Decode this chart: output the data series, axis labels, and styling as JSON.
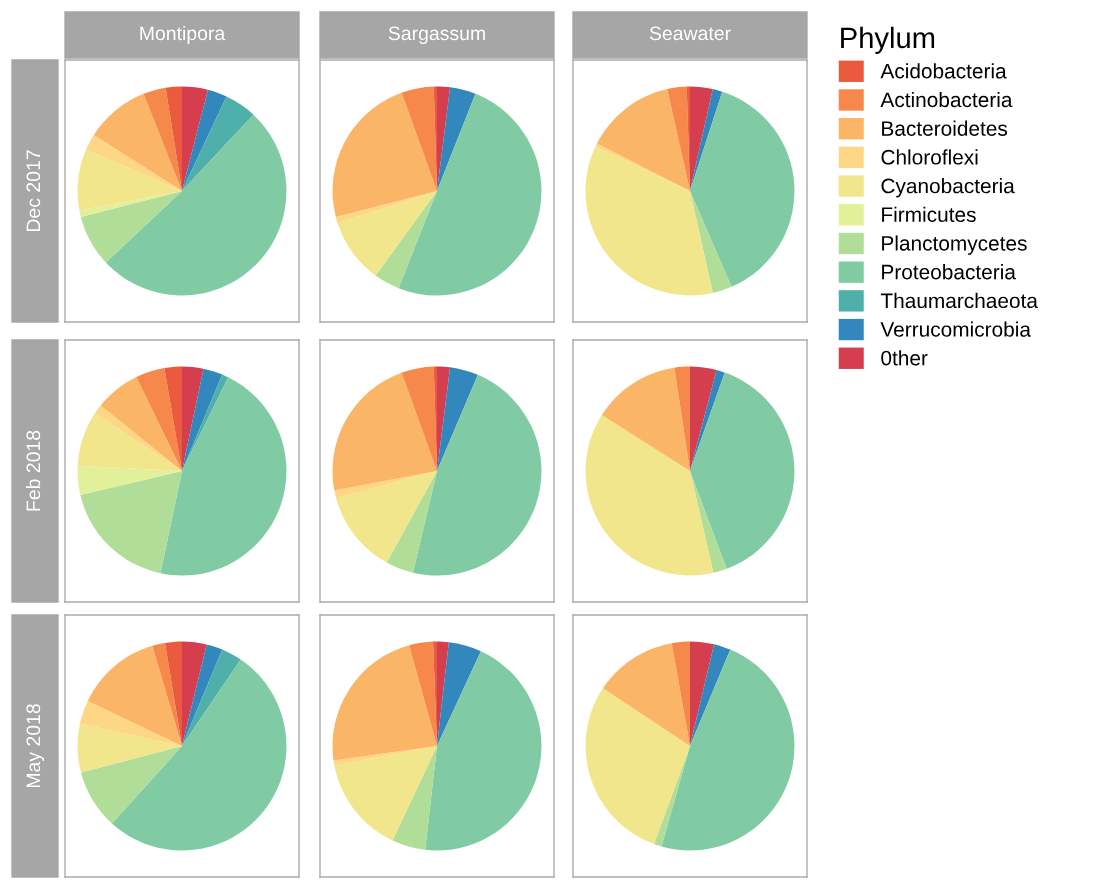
{
  "chart_data": [
    {
      "type": "pie",
      "title": "Montipora",
      "ylabel": "Dec 2017",
      "legend_title": "Phylum",
      "legend": "right",
      "categories": [
        "Acidobacteria",
        "Actinobacteria",
        "Bacteroidetes",
        "Chloroflexi",
        "Cyanobacteria",
        "Firmicutes",
        "Planctomycetes",
        "Proteobacteria",
        "Thaumarchaeota",
        "Verrucomicrobia",
        "0ther"
      ],
      "values": [
        2.5,
        3.5,
        10,
        2.5,
        9.5,
        1,
        8,
        51,
        5,
        3,
        4
      ],
      "colors": [
        "#e95a3f",
        "#f5884a",
        "#fbb567",
        "#fdd686",
        "#f2e68c",
        "#e3f09a",
        "#b0dd98",
        "#80cba4",
        "#4fb0ab",
        "#3288bd",
        "#d53e4f"
      ]
    },
    {
      "type": "pie",
      "title": "Sargassum",
      "categories": [
        null,
        null,
        null,
        null,
        null,
        null,
        null,
        null,
        null,
        null,
        null
      ],
      "values": [
        0.5,
        5,
        23.5,
        1,
        10,
        0,
        4,
        50,
        0,
        4,
        2
      ],
      "colors": [
        "#e95a3f",
        "#f5884a",
        "#fbb567",
        "#fdd686",
        "#f2e68c",
        "#e3f09a",
        "#b0dd98",
        "#80cba4",
        "#4fb0ab",
        "#3288bd",
        "#d53e4f"
      ]
    },
    {
      "type": "pie",
      "title": "Seawater",
      "categories": [
        null,
        null,
        null,
        null,
        null,
        null,
        null,
        null,
        null,
        null,
        null
      ],
      "values": [
        0.5,
        3,
        14,
        0.5,
        35.5,
        0,
        3,
        38.5,
        0,
        1.5,
        3.5
      ],
      "colors": [
        "#e95a3f",
        "#f5884a",
        "#fbb567",
        "#fdd686",
        "#f2e68c",
        "#e3f09a",
        "#b0dd98",
        "#80cba4",
        "#4fb0ab",
        "#3288bd",
        "#d53e4f"
      ]
    },
    {
      "type": "pie",
      "ylabel": "Feb 2018",
      "categories": [
        null,
        null,
        null,
        null,
        null,
        null,
        null,
        null,
        null,
        null,
        null
      ],
      "values": [
        2.7,
        4.5,
        7,
        1.5,
        8.5,
        4.5,
        18,
        46,
        1,
        3,
        3.3
      ],
      "colors": [
        "#e95a3f",
        "#f5884a",
        "#fbb567",
        "#fdd686",
        "#f2e68c",
        "#e3f09a",
        "#b0dd98",
        "#80cba4",
        "#4fb0ab",
        "#3288bd",
        "#d53e4f"
      ]
    },
    {
      "type": "pie",
      "categories": [
        null,
        null,
        null,
        null,
        null,
        null,
        null,
        null,
        null,
        null,
        null
      ],
      "values": [
        0.5,
        5,
        22.5,
        1.2,
        12.8,
        0,
        4.3,
        47.3,
        0,
        4.4,
        2
      ],
      "colors": [
        "#e95a3f",
        "#f5884a",
        "#fbb567",
        "#fdd686",
        "#f2e68c",
        "#e3f09a",
        "#b0dd98",
        "#80cba4",
        "#4fb0ab",
        "#3288bd",
        "#d53e4f"
      ]
    },
    {
      "type": "pie",
      "categories": [
        null,
        null,
        null,
        null,
        null,
        null,
        null,
        null,
        null,
        null,
        null
      ],
      "values": [
        0,
        2.4,
        13.6,
        0,
        37.6,
        0,
        2.1,
        38.9,
        0,
        1.3,
        4.1
      ],
      "colors": [
        "#e95a3f",
        "#f5884a",
        "#fbb567",
        "#fdd686",
        "#f2e68c",
        "#e3f09a",
        "#b0dd98",
        "#80cba4",
        "#4fb0ab",
        "#3288bd",
        "#d53e4f"
      ]
    },
    {
      "type": "pie",
      "ylabel": "May 2018",
      "categories": [
        null,
        null,
        null,
        null,
        null,
        null,
        null,
        null,
        null,
        null,
        null
      ],
      "values": [
        2.6,
        2,
        13.3,
        3.7,
        7.5,
        0,
        9.2,
        52.2,
        3.2,
        2.5,
        3.8
      ],
      "colors": [
        "#e95a3f",
        "#f5884a",
        "#fbb567",
        "#fdd686",
        "#f2e68c",
        "#e3f09a",
        "#b0dd98",
        "#80cba4",
        "#4fb0ab",
        "#3288bd",
        "#d53e4f"
      ]
    },
    {
      "type": "pie",
      "categories": [
        null,
        null,
        null,
        null,
        null,
        null,
        null,
        null,
        null,
        null,
        null
      ],
      "values": [
        0.6,
        3.7,
        22.9,
        0.8,
        15,
        0,
        5.2,
        44.9,
        0,
        5.1,
        1.8
      ],
      "colors": [
        "#e95a3f",
        "#f5884a",
        "#fbb567",
        "#fdd686",
        "#f2e68c",
        "#e3f09a",
        "#b0dd98",
        "#80cba4",
        "#4fb0ab",
        "#3288bd",
        "#d53e4f"
      ]
    },
    {
      "type": "pie",
      "categories": [
        null,
        null,
        null,
        null,
        null,
        null,
        null,
        null,
        null,
        null,
        null
      ],
      "values": [
        0,
        2.8,
        12.9,
        0,
        28.7,
        0,
        1.2,
        48.1,
        0,
        2.6,
        3.7
      ],
      "colors": [
        "#e95a3f",
        "#f5884a",
        "#fbb567",
        "#fdd686",
        "#f2e68c",
        "#e3f09a",
        "#b0dd98",
        "#80cba4",
        "#4fb0ab",
        "#3288bd",
        "#d53e4f"
      ]
    }
  ]
}
